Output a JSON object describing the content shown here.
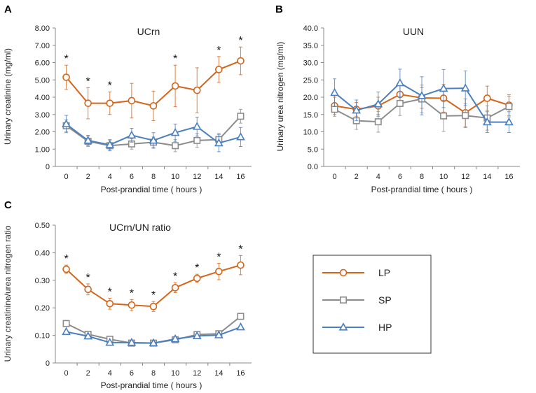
{
  "series_styles": {
    "LP": {
      "color": "#d4651a",
      "marker": "circle"
    },
    "SP": {
      "color": "#8c8c8c",
      "marker": "square"
    },
    "HP": {
      "color": "#4a7fc1",
      "marker": "triangle"
    }
  },
  "legend": {
    "items": [
      "LP",
      "SP",
      "HP"
    ]
  },
  "chart_data": [
    {
      "panel": "A",
      "type": "line",
      "title": "UCrn",
      "xlabel": "Post-prandial time ( hours )",
      "ylabel": "Urinary creatinine (mg/ml)",
      "x": [
        0,
        2,
        4,
        6,
        8,
        10,
        12,
        14,
        16
      ],
      "ylim": [
        0,
        8
      ],
      "yticks": [
        0,
        1,
        2,
        3,
        4,
        5,
        6,
        7,
        8
      ],
      "ytick_labels": [
        "0",
        "1.00",
        "2.00",
        "3.00",
        "4.00",
        "5.00",
        "6.00",
        "7.00",
        "8.00"
      ],
      "series": [
        {
          "name": "LP",
          "values": [
            5.15,
            3.65,
            3.65,
            3.8,
            3.5,
            4.65,
            4.4,
            5.6,
            6.1
          ],
          "errors": [
            0.7,
            0.9,
            0.65,
            1.0,
            0.85,
            1.2,
            1.3,
            0.75,
            0.8
          ]
        },
        {
          "name": "SP",
          "values": [
            2.35,
            1.45,
            1.2,
            1.3,
            1.4,
            1.2,
            1.5,
            1.55,
            2.9
          ],
          "errors": [
            0.35,
            0.3,
            0.3,
            0.3,
            0.3,
            0.35,
            0.4,
            0.35,
            0.4
          ]
        },
        {
          "name": "HP",
          "values": [
            2.45,
            1.5,
            1.25,
            1.8,
            1.5,
            1.95,
            2.3,
            1.35,
            1.7
          ],
          "errors": [
            0.5,
            0.3,
            0.3,
            0.4,
            0.45,
            0.5,
            0.55,
            0.5,
            0.55
          ]
        }
      ],
      "significance": [
        "*",
        "*",
        "*",
        "",
        "",
        "*",
        "",
        "*",
        "*"
      ]
    },
    {
      "panel": "B",
      "type": "line",
      "title": "UUN",
      "xlabel": "Post-prandial time ( hours )",
      "ylabel": "Urinary urea nitrogen (mg/ml)",
      "x": [
        0,
        2,
        4,
        6,
        8,
        10,
        12,
        14,
        16
      ],
      "ylim": [
        0,
        40
      ],
      "yticks": [
        0,
        5,
        10,
        15,
        20,
        25,
        30,
        35,
        40
      ],
      "ytick_labels": [
        "0.0",
        "5.0",
        "10.0",
        "15.0",
        "20.0",
        "25.0",
        "30.0",
        "35.0",
        "40.0"
      ],
      "series": [
        {
          "name": "LP",
          "values": [
            17.5,
            16.5,
            17.5,
            20.8,
            19.8,
            19.7,
            15.5,
            19.7,
            17.7
          ],
          "errors": [
            2.5,
            2.0,
            2.5,
            3.5,
            3.0,
            4.0,
            4.0,
            3.5,
            3.0
          ]
        },
        {
          "name": "SP",
          "values": [
            16.5,
            13.2,
            12.9,
            18.2,
            19.5,
            14.6,
            14.7,
            14.0,
            17.3
          ],
          "errors": [
            2.0,
            2.5,
            3.0,
            3.5,
            4.0,
            4.5,
            3.5,
            3.5,
            3.0
          ]
        },
        {
          "name": "HP",
          "values": [
            21.3,
            16.2,
            18.0,
            24.1,
            20.4,
            22.5,
            22.6,
            12.8,
            12.8
          ],
          "errors": [
            4.0,
            3.0,
            3.5,
            4.0,
            5.5,
            5.5,
            5.0,
            3.0,
            3.0
          ]
        }
      ],
      "significance": [
        "",
        "",
        "",
        "",
        "",
        "",
        "",
        "",
        ""
      ]
    },
    {
      "panel": "C",
      "type": "line",
      "title": "UCrn/UN ratio",
      "xlabel": "Post-prandial time ( hours )",
      "ylabel": "Urinary creatinine/urea nitrogen ratio",
      "x": [
        0,
        2,
        4,
        6,
        8,
        10,
        12,
        14,
        16
      ],
      "ylim": [
        0,
        0.5
      ],
      "yticks": [
        0,
        0.1,
        0.2,
        0.3,
        0.4,
        0.5
      ],
      "ytick_labels": [
        "0",
        "0.10",
        "0.20",
        "0.30",
        "0.40",
        "0.50"
      ],
      "series": [
        {
          "name": "LP",
          "values": [
            0.34,
            0.267,
            0.215,
            0.21,
            0.205,
            0.273,
            0.307,
            0.332,
            0.355
          ],
          "errors": [
            0.015,
            0.02,
            0.02,
            0.02,
            0.018,
            0.018,
            0.015,
            0.03,
            0.035
          ]
        },
        {
          "name": "SP",
          "values": [
            0.143,
            0.104,
            0.086,
            0.072,
            0.072,
            0.084,
            0.103,
            0.106,
            0.169
          ],
          "errors": [
            0.005,
            0.005,
            0.005,
            0.005,
            0.005,
            0.005,
            0.005,
            0.005,
            0.006
          ]
        },
        {
          "name": "HP",
          "values": [
            0.113,
            0.097,
            0.074,
            0.074,
            0.072,
            0.087,
            0.098,
            0.101,
            0.13
          ],
          "errors": [
            0.005,
            0.005,
            0.005,
            0.005,
            0.005,
            0.005,
            0.005,
            0.005,
            0.005
          ]
        }
      ],
      "significance": [
        "*",
        "*",
        "*",
        "*",
        "*",
        "*",
        "*",
        "*",
        "*"
      ]
    }
  ]
}
